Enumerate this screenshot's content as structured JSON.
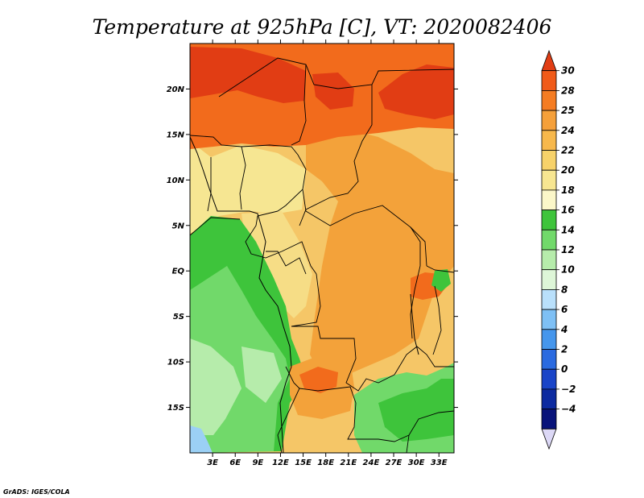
{
  "title": "Temperature at 925hPa [C], VT: 2020082406",
  "credit": "GrADS: IGES/COLA",
  "map": {
    "lon_range": [
      0,
      35
    ],
    "lat_range": [
      -20,
      25
    ],
    "lat_ticks": [
      "20N",
      "15N",
      "10N",
      "5N",
      "EQ",
      "5S",
      "10S",
      "15S"
    ],
    "lon_ticks": [
      "3E",
      "6E",
      "9E",
      "12E",
      "15E",
      "18E",
      "21E",
      "24E",
      "27E",
      "30E",
      "33E"
    ],
    "palette": {
      "ocean": "#f6e692",
      "land_base": "#f5c667",
      "warm": "#f3a23a",
      "hot": "#f26b1c",
      "hottest": "#e13d14",
      "green_dark": "#3ec43b",
      "green": "#71d96a",
      "green_light": "#b6ecab",
      "blue_light": "#9bd0f5",
      "border": "#000000"
    }
  },
  "colorbar": {
    "labels": [
      "30",
      "28",
      "25",
      "24",
      "22",
      "20",
      "18",
      "16",
      "14",
      "12",
      "10",
      "8",
      "6",
      "4",
      "2",
      "0",
      "−2",
      "−4"
    ],
    "colors": [
      "#e13d14",
      "#f05a18",
      "#f57c22",
      "#f5a03a",
      "#f7b84c",
      "#f7d26a",
      "#f7e691",
      "#fbf7c9",
      "#3ec43b",
      "#71d96a",
      "#b6ecab",
      "#def6d8",
      "#b9e0fb",
      "#7ec0f5",
      "#4596ec",
      "#2a6ae0",
      "#1944c8",
      "#0c2aa0",
      "#08137a",
      "#dcd8f6"
    ]
  }
}
